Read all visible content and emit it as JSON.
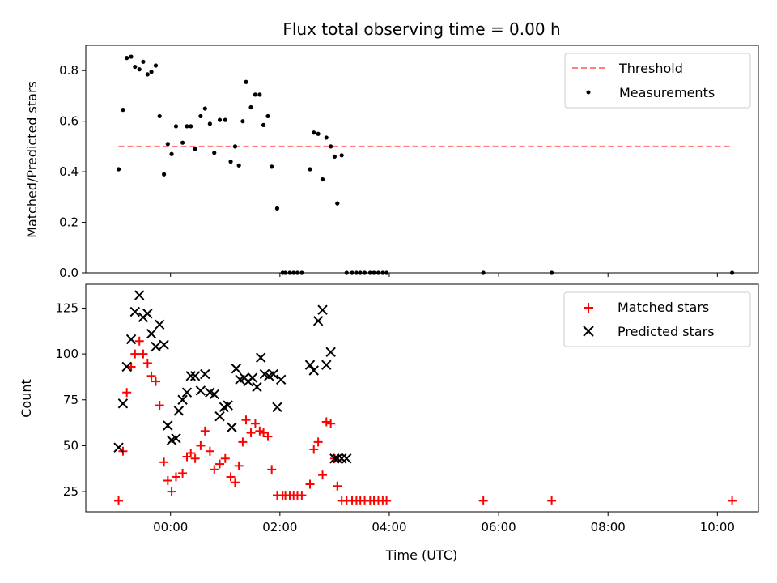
{
  "chart_data": {
    "title": "Flux total observing time = 0.00 h",
    "xlabel": "Time (UTC)",
    "x_tick_labels": [
      "00:00",
      "02:00",
      "04:00",
      "06:00",
      "08:00",
      "10:00"
    ],
    "x_tick_hours": [
      0,
      2,
      4,
      6,
      8,
      10
    ],
    "xlim_hours": [
      -1.55,
      10.75
    ],
    "top": {
      "type": "scatter",
      "ylabel": "Matched/Predicted stars",
      "ylim": [
        0,
        0.9
      ],
      "y_ticks": [
        0.0,
        0.2,
        0.4,
        0.6,
        0.8
      ],
      "y_tick_labels": [
        "0.0",
        "0.2",
        "0.4",
        "0.6",
        "0.8"
      ],
      "threshold": {
        "name": "Threshold",
        "value": 0.5,
        "x_range_hours": [
          -0.95,
          10.27
        ],
        "color": "#ff7f7f"
      },
      "measurements": {
        "name": "Measurements",
        "color": "#000000",
        "x_hours": [
          -0.95,
          -0.87,
          -0.8,
          -0.72,
          -0.65,
          -0.57,
          -0.5,
          -0.42,
          -0.35,
          -0.27,
          -0.2,
          -0.12,
          -0.05,
          0.02,
          0.1,
          0.22,
          0.3,
          0.37,
          0.45,
          0.55,
          0.63,
          0.72,
          0.8,
          0.9,
          1.0,
          1.1,
          1.18,
          1.25,
          1.32,
          1.38,
          1.47,
          1.55,
          1.63,
          1.7,
          1.78,
          1.85,
          1.95,
          2.05,
          2.1,
          2.18,
          2.25,
          2.32,
          2.4,
          2.55,
          2.62,
          2.7,
          2.78,
          2.85,
          2.93,
          3.0,
          3.05,
          3.13,
          3.22,
          3.32,
          3.4,
          3.47,
          3.55,
          3.65,
          3.72,
          3.8,
          3.88,
          3.95,
          5.72,
          6.97,
          10.27
        ],
        "y": [
          0.41,
          0.645,
          0.85,
          0.855,
          0.815,
          0.805,
          0.835,
          0.785,
          0.795,
          0.82,
          0.62,
          0.39,
          0.51,
          0.47,
          0.58,
          0.515,
          0.58,
          0.58,
          0.49,
          0.62,
          0.65,
          0.59,
          0.475,
          0.605,
          0.605,
          0.44,
          0.5,
          0.425,
          0.6,
          0.755,
          0.655,
          0.705,
          0.705,
          0.585,
          0.62,
          0.42,
          0.255,
          0.0,
          0.0,
          0.0,
          0.0,
          0.0,
          0.0,
          0.41,
          0.555,
          0.55,
          0.37,
          0.535,
          0.5,
          0.46,
          0.275,
          0.465,
          0.0,
          0.0,
          0.0,
          0.0,
          0.0,
          0.0,
          0.0,
          0.0,
          0.0,
          0.0,
          0.0,
          0.0,
          0.0
        ]
      }
    },
    "bottom": {
      "type": "scatter",
      "ylabel": "Count",
      "ylim": [
        14,
        138
      ],
      "y_ticks": [
        25,
        50,
        75,
        100,
        125
      ],
      "y_tick_labels": [
        "25",
        "50",
        "75",
        "100",
        "125"
      ],
      "series": [
        {
          "name": "Matched stars",
          "marker": "plus",
          "color": "#ff0000",
          "x_hours": [
            -0.95,
            -0.87,
            -0.8,
            -0.72,
            -0.65,
            -0.57,
            -0.5,
            -0.42,
            -0.35,
            -0.27,
            -0.2,
            -0.12,
            -0.05,
            0.02,
            0.1,
            0.22,
            0.3,
            0.37,
            0.45,
            0.55,
            0.63,
            0.72,
            0.8,
            0.9,
            1.0,
            1.1,
            1.18,
            1.25,
            1.32,
            1.38,
            1.47,
            1.55,
            1.63,
            1.7,
            1.78,
            1.85,
            1.95,
            2.05,
            2.1,
            2.18,
            2.25,
            2.32,
            2.4,
            2.55,
            2.62,
            2.7,
            2.78,
            2.85,
            2.93,
            3.0,
            3.05,
            3.13,
            3.22,
            3.32,
            3.4,
            3.47,
            3.55,
            3.65,
            3.72,
            3.8,
            3.88,
            3.95,
            5.72,
            6.97,
            10.27
          ],
          "y": [
            20,
            47,
            79,
            93,
            100,
            107,
            100,
            95,
            88,
            85,
            72,
            41,
            31,
            25,
            33,
            35,
            44,
            46,
            43,
            50,
            58,
            47,
            37,
            40,
            43,
            33,
            30,
            39,
            52,
            64,
            57,
            62,
            58,
            57,
            55,
            37,
            23,
            23,
            23,
            23,
            23,
            23,
            23,
            29,
            48,
            52,
            34,
            63,
            62,
            43,
            28,
            20,
            20,
            20,
            20,
            20,
            20,
            20,
            20,
            20,
            20,
            20,
            20,
            20,
            20
          ]
        },
        {
          "name": "Predicted stars",
          "marker": "x",
          "color": "#000000",
          "x_hours": [
            -0.95,
            -0.87,
            -0.8,
            -0.72,
            -0.65,
            -0.57,
            -0.5,
            -0.42,
            -0.35,
            -0.27,
            -0.2,
            -0.12,
            -0.05,
            0.02,
            0.1,
            0.15,
            0.22,
            0.3,
            0.37,
            0.45,
            0.55,
            0.63,
            0.72,
            0.8,
            0.9,
            0.98,
            1.05,
            1.12,
            1.2,
            1.27,
            1.35,
            1.42,
            1.5,
            1.58,
            1.65,
            1.72,
            1.8,
            1.88,
            1.95,
            2.02,
            2.55,
            2.62,
            2.7,
            2.78,
            2.85,
            2.93,
            3.0,
            3.05,
            3.13,
            3.22
          ],
          "y": [
            49,
            73,
            93,
            108,
            123,
            132,
            120,
            122,
            111,
            104,
            116,
            105,
            61,
            53,
            54,
            69,
            75,
            79,
            88,
            88,
            80,
            89,
            79,
            78,
            66,
            71,
            72,
            60,
            92,
            86,
            87,
            85,
            87,
            82,
            98,
            89,
            88,
            89,
            71,
            86,
            94,
            91,
            118,
            124,
            94,
            101,
            43,
            43,
            43,
            43
          ]
        }
      ]
    }
  }
}
